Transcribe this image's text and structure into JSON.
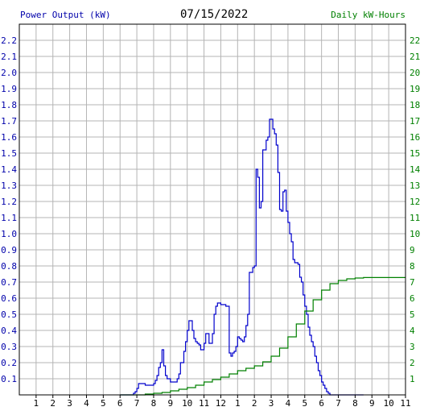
{
  "header": {
    "left_axis_title": "Power Output (kW)",
    "date": "07/15/2022",
    "right_axis_title": "Daily kW-Hours"
  },
  "colors": {
    "power_line": "#0000cc",
    "energy_line": "#008000",
    "left_text": "#0000aa",
    "right_text": "#008000",
    "grid": "#b4b4b4",
    "frame": "#000000"
  },
  "chart_data": {
    "type": "line",
    "grid": true,
    "x_tick_labels": [
      "1",
      "2",
      "3",
      "4",
      "5",
      "6",
      "7",
      "8",
      "9",
      "10",
      "11",
      "12",
      "1",
      "2",
      "3",
      "4",
      "5",
      "6",
      "7",
      "8",
      "9",
      "10",
      "11"
    ],
    "xlim_hours": [
      0,
      23
    ],
    "y_left": {
      "ylim": [
        0,
        2.3
      ],
      "tick_labels": [
        "0.1",
        "0.2",
        "0.3",
        "0.4",
        "0.5",
        "0.6",
        "0.7",
        "0.8",
        "0.9",
        "1.0",
        "1.1",
        "1.2",
        "1.3",
        "1.4",
        "1.5",
        "1.6",
        "1.7",
        "1.8",
        "1.9",
        "2.0",
        "2.1",
        "2.2"
      ]
    },
    "y_right": {
      "ylim": [
        0,
        23
      ],
      "tick_labels": [
        "1",
        "2",
        "3",
        "4",
        "5",
        "6",
        "7",
        "8",
        "9",
        "10",
        "11",
        "12",
        "13",
        "14",
        "15",
        "16",
        "17",
        "18",
        "19",
        "20",
        "21",
        "22"
      ]
    },
    "series": [
      {
        "axis": "left",
        "color": "#0000cc",
        "step": true,
        "x": [
          6.0,
          6.1,
          6.2,
          6.3,
          6.4,
          6.5,
          6.6,
          6.7,
          6.8,
          6.9,
          7.0,
          7.1,
          7.2,
          7.3,
          7.4,
          7.5,
          7.6,
          7.7,
          7.8,
          7.9,
          8.0,
          8.1,
          8.2,
          8.3,
          8.4,
          8.5,
          8.6,
          8.7,
          8.8,
          8.9,
          9.0,
          9.1,
          9.2,
          9.3,
          9.4,
          9.5,
          9.6,
          9.7,
          9.8,
          9.9,
          10.0,
          10.1,
          10.2,
          10.3,
          10.4,
          10.5,
          10.6,
          10.7,
          10.8,
          10.9,
          11.0,
          11.1,
          11.2,
          11.3,
          11.4,
          11.5,
          11.6,
          11.7,
          11.8,
          11.9,
          12.0,
          12.1,
          12.2,
          12.3,
          12.4,
          12.5,
          12.6,
          12.7,
          12.8,
          12.9,
          13.0,
          13.1,
          13.2,
          13.3,
          13.4,
          13.5,
          13.6,
          13.7,
          13.8,
          13.9,
          14.0,
          14.1,
          14.2,
          14.3,
          14.4,
          14.5,
          14.6,
          14.7,
          14.8,
          14.9,
          15.0,
          15.1,
          15.2,
          15.3,
          15.4,
          15.5,
          15.6,
          15.7,
          15.8,
          15.9,
          16.0,
          16.1,
          16.2,
          16.3,
          16.4,
          16.5,
          16.6,
          16.7,
          16.8,
          16.9,
          17.0,
          17.1,
          17.2,
          17.3,
          17.4,
          17.5,
          17.6,
          17.7,
          17.8,
          17.9,
          18.0,
          18.1,
          18.2,
          18.3,
          18.4,
          18.5,
          18.6,
          18.7,
          18.8,
          18.9,
          19.0,
          19.1,
          19.2,
          19.3,
          19.4,
          19.5,
          19.6,
          19.7,
          19.8,
          19.9,
          20.0,
          20.5
        ],
        "values": [
          0.0,
          0.0,
          0.0,
          0.0,
          0.0,
          0.0,
          0.0,
          0.0,
          0.01,
          0.02,
          0.04,
          0.07,
          0.07,
          0.07,
          0.07,
          0.06,
          0.06,
          0.06,
          0.06,
          0.06,
          0.07,
          0.09,
          0.12,
          0.17,
          0.2,
          0.28,
          0.18,
          0.12,
          0.1,
          0.1,
          0.08,
          0.08,
          0.08,
          0.08,
          0.1,
          0.13,
          0.2,
          0.2,
          0.27,
          0.33,
          0.4,
          0.46,
          0.46,
          0.4,
          0.35,
          0.33,
          0.32,
          0.31,
          0.28,
          0.28,
          0.32,
          0.38,
          0.38,
          0.32,
          0.32,
          0.38,
          0.5,
          0.55,
          0.57,
          0.57,
          0.56,
          0.56,
          0.56,
          0.55,
          0.55,
          0.26,
          0.24,
          0.26,
          0.27,
          0.3,
          0.36,
          0.35,
          0.34,
          0.33,
          0.36,
          0.43,
          0.5,
          0.76,
          0.76,
          0.79,
          0.8,
          1.4,
          1.35,
          1.16,
          1.2,
          1.52,
          1.52,
          1.58,
          1.6,
          1.71,
          1.71,
          1.65,
          1.62,
          1.55,
          1.38,
          1.15,
          1.14,
          1.26,
          1.27,
          1.14,
          1.07,
          1.0,
          0.95,
          0.84,
          0.82,
          0.82,
          0.81,
          0.73,
          0.7,
          0.62,
          0.55,
          0.5,
          0.42,
          0.37,
          0.33,
          0.3,
          0.24,
          0.2,
          0.15,
          0.12,
          0.08,
          0.06,
          0.04,
          0.02,
          0.01,
          0.0,
          0.0,
          0.0,
          0.0,
          0.0,
          0.0,
          0.0,
          0.0,
          0.0,
          0.0,
          0.0,
          0.0,
          0.0,
          0.0,
          0.0,
          0.0,
          0.0
        ]
      },
      {
        "axis": "right",
        "color": "#008000",
        "step": true,
        "x": [
          6.0,
          6.5,
          7.0,
          7.5,
          8.0,
          8.5,
          9.0,
          9.5,
          10.0,
          10.5,
          11.0,
          11.5,
          12.0,
          12.5,
          13.0,
          13.5,
          14.0,
          14.5,
          15.0,
          15.5,
          16.0,
          16.5,
          17.0,
          17.5,
          18.0,
          18.5,
          19.0,
          19.5,
          20.0,
          20.5,
          21.0,
          21.5,
          22.0,
          22.5,
          23.0
        ],
        "values": [
          0.0,
          0.0,
          0.0,
          0.05,
          0.1,
          0.15,
          0.25,
          0.35,
          0.45,
          0.6,
          0.8,
          0.95,
          1.1,
          1.3,
          1.5,
          1.65,
          1.8,
          2.05,
          2.4,
          2.9,
          3.6,
          4.4,
          5.2,
          5.9,
          6.5,
          6.9,
          7.1,
          7.2,
          7.25,
          7.28,
          7.28,
          7.28,
          7.28,
          7.28,
          7.28
        ]
      }
    ]
  }
}
